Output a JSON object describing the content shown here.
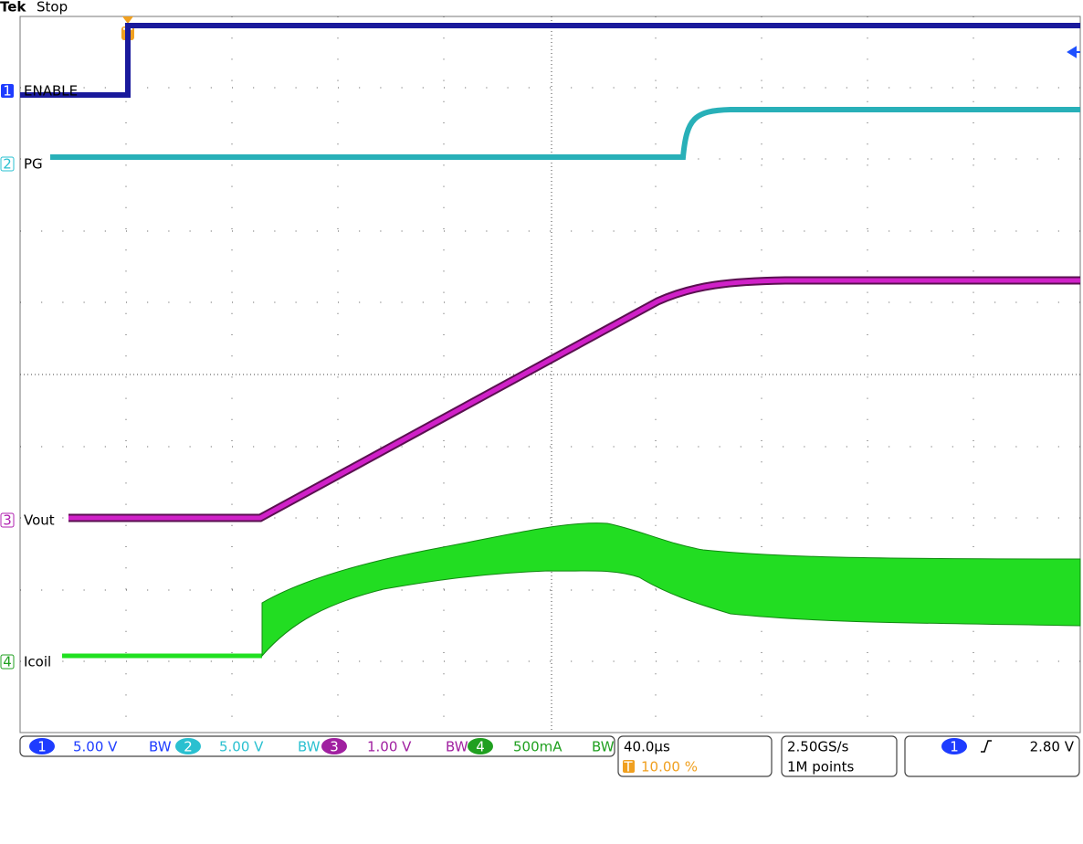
{
  "header": {
    "brand": "Tek",
    "status": "Stop"
  },
  "trigger_marker": "T",
  "channels": [
    {
      "number": "1",
      "label": "ENABLE",
      "scale": "5.00 V",
      "bw": "BW"
    },
    {
      "number": "2",
      "label": "PG",
      "scale": "5.00 V",
      "bw": "BW"
    },
    {
      "number": "3",
      "label": "Vout",
      "scale": "1.00 V",
      "bw": "BW"
    },
    {
      "number": "4",
      "label": "Icoil",
      "scale": "500mA",
      "bw": "BW"
    }
  ],
  "timebase": {
    "scale": "40.0µs",
    "trigger_position_marker": "T",
    "trigger_position": "10.00 %"
  },
  "acquisition": {
    "sample_rate": "2.50GS/s",
    "record_length": "1M points"
  },
  "trigger": {
    "source": "1",
    "level": "2.80 V"
  }
}
